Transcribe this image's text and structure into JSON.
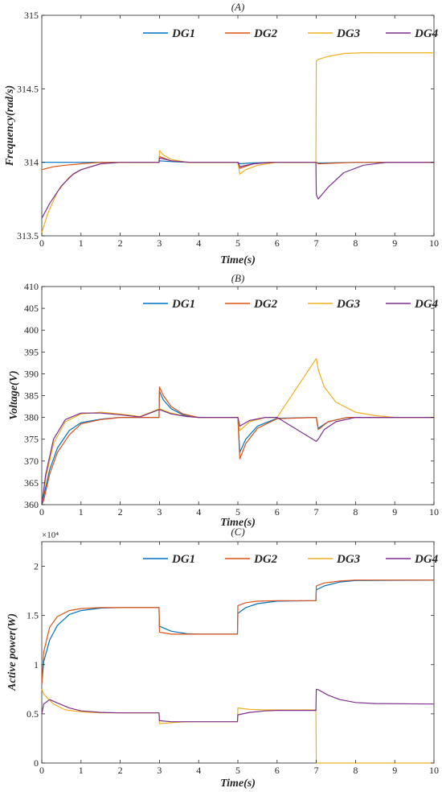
{
  "colors": {
    "DG1": "#0072BD",
    "DG2": "#D95319",
    "DG3": "#EDB120",
    "DG4": "#7E2F8E"
  },
  "chart_data": [
    {
      "type": "line",
      "title": "(A)",
      "xlabel": "Time(s)",
      "ylabel": "Frequency(rad/s)",
      "xlim": [
        0,
        10
      ],
      "ylim": [
        313.5,
        315
      ],
      "xticks": [
        "0",
        "1",
        "2",
        "3",
        "4",
        "5",
        "6",
        "7",
        "8",
        "9",
        "10"
      ],
      "yticks": [
        "313.5",
        "314",
        "314.5",
        "315"
      ],
      "legend_position": "top",
      "series": [
        {
          "name": "DG1",
          "x": [
            0,
            0.5,
            1,
            2,
            2.99,
            3,
            3.3,
            3.7,
            5,
            5.05,
            5.3,
            5.8,
            7,
            7.05,
            8,
            10
          ],
          "y": [
            314,
            314,
            314,
            314,
            314,
            314.01,
            314.005,
            314,
            314,
            313.99,
            313.995,
            314,
            314,
            313.995,
            314,
            314
          ]
        },
        {
          "name": "DG2",
          "x": [
            0,
            0.3,
            0.6,
            1,
            1.5,
            2,
            2.99,
            3,
            3.3,
            3.7,
            5,
            5.05,
            5.4,
            5.8,
            7,
            7.05,
            8,
            10
          ],
          "y": [
            313.95,
            313.97,
            313.98,
            313.99,
            314,
            314,
            314,
            314.04,
            314.01,
            314,
            314,
            313.96,
            313.99,
            314,
            314,
            313.99,
            314,
            314
          ]
        },
        {
          "name": "DG3",
          "x": [
            0,
            0.15,
            0.4,
            0.7,
            1,
            1.5,
            2,
            2.99,
            3,
            3.1,
            3.3,
            3.7,
            4.2,
            5,
            5.05,
            5.2,
            5.5,
            6,
            6.99,
            7,
            7.05,
            7.3,
            7.7,
            8.2,
            9,
            10
          ],
          "y": [
            313.52,
            313.65,
            313.8,
            313.9,
            313.95,
            313.99,
            314,
            314,
            314.08,
            314.05,
            314.02,
            314,
            314,
            314,
            313.92,
            313.95,
            313.98,
            314,
            314,
            314.69,
            314.7,
            314.72,
            314.74,
            314.745,
            314.745,
            314.745
          ]
        },
        {
          "name": "DG4",
          "x": [
            0,
            0.2,
            0.5,
            0.8,
            1,
            1.5,
            2,
            2.99,
            3,
            3.3,
            3.8,
            5,
            5.05,
            5.4,
            5.9,
            6.99,
            7,
            7.05,
            7.3,
            7.7,
            8.2,
            8.8,
            10
          ],
          "y": [
            313.62,
            313.72,
            313.84,
            313.92,
            313.95,
            313.99,
            314,
            314,
            314.03,
            314.01,
            314,
            314,
            313.97,
            313.99,
            314,
            314,
            313.78,
            313.75,
            313.83,
            313.93,
            313.98,
            314,
            314
          ]
        }
      ]
    },
    {
      "type": "line",
      "title": "(B)",
      "xlabel": "Time(s)",
      "ylabel": "Voltage(V)",
      "xlim": [
        0,
        10
      ],
      "ylim": [
        360,
        410
      ],
      "xticks": [
        "0",
        "1",
        "2",
        "3",
        "4",
        "5",
        "6",
        "7",
        "8",
        "9",
        "10"
      ],
      "yticks": [
        "360",
        "365",
        "370",
        "375",
        "380",
        "385",
        "390",
        "395",
        "400",
        "405",
        "410"
      ],
      "legend_position": "top",
      "series": [
        {
          "name": "DG1",
          "x": [
            0,
            0.05,
            0.2,
            0.4,
            0.7,
            1,
            1.5,
            2,
            2.99,
            3,
            3.1,
            3.3,
            3.6,
            4,
            5,
            5.05,
            5.2,
            5.5,
            6,
            7,
            7.05,
            7.3,
            7.8,
            10
          ],
          "y": [
            360,
            362,
            368,
            373,
            377,
            378.8,
            379.6,
            380,
            380,
            386,
            384,
            382,
            380.6,
            380,
            380,
            372,
            375,
            378,
            379.8,
            380,
            377.5,
            379,
            380,
            380
          ]
        },
        {
          "name": "DG2",
          "x": [
            0,
            0.05,
            0.2,
            0.4,
            0.7,
            1,
            1.5,
            2,
            2.99,
            3,
            3.1,
            3.3,
            3.6,
            4,
            5,
            5.05,
            5.2,
            5.5,
            6,
            7,
            7.05,
            7.3,
            7.8,
            10
          ],
          "y": [
            360,
            361,
            367,
            372,
            376,
            378.5,
            379.5,
            380,
            380,
            387,
            385,
            382.5,
            380.8,
            380,
            380,
            370.5,
            374,
            377.5,
            379.7,
            380,
            377.2,
            379,
            380,
            380
          ]
        },
        {
          "name": "DG3",
          "x": [
            0,
            0.1,
            0.3,
            0.6,
            1,
            1.5,
            2,
            2.5,
            3,
            3.3,
            3.7,
            4,
            5,
            5.05,
            5.3,
            5.7,
            6,
            7,
            7.05,
            7.2,
            7.5,
            8,
            8.5,
            9,
            10
          ],
          "y": [
            360,
            366,
            374,
            379,
            380.8,
            381.2,
            380.8,
            380.2,
            382,
            381,
            380.2,
            380,
            380,
            377,
            379,
            380,
            380,
            393.5,
            391,
            387,
            383.5,
            381.2,
            380.4,
            380,
            380
          ]
        },
        {
          "name": "DG4",
          "x": [
            0,
            0.1,
            0.3,
            0.6,
            1,
            1.5,
            2,
            2.5,
            3,
            3.3,
            3.7,
            4,
            5,
            5.05,
            5.3,
            5.7,
            6,
            7,
            7.05,
            7.2,
            7.5,
            8,
            8.5,
            10
          ],
          "y": [
            360,
            367,
            375,
            379.5,
            381,
            381,
            380.6,
            380.1,
            381.8,
            380.8,
            380.2,
            380,
            380,
            378,
            379.3,
            380,
            380,
            374.5,
            375,
            377.2,
            379,
            380,
            380,
            380
          ]
        }
      ]
    },
    {
      "type": "line",
      "title": "(C)",
      "xlabel": "Time(s)",
      "ylabel": "Active power(W)",
      "y_exponent": "×10⁴",
      "xlim": [
        0,
        10
      ],
      "ylim": [
        0,
        22500
      ],
      "xticks": [
        "0",
        "1",
        "2",
        "3",
        "4",
        "5",
        "6",
        "7",
        "8",
        "9",
        "10"
      ],
      "yticks": [
        "0",
        "0.5",
        "1",
        "1.5",
        "2"
      ],
      "ytick_values": [
        0,
        5000,
        10000,
        15000,
        20000
      ],
      "legend_position": "top",
      "series": [
        {
          "name": "DG1",
          "x": [
            0,
            0.05,
            0.2,
            0.4,
            0.7,
            1,
            1.5,
            2,
            2.99,
            3,
            3.3,
            3.7,
            4,
            4.99,
            5,
            5.2,
            5.5,
            6,
            6.99,
            7,
            7.2,
            7.6,
            8,
            10
          ],
          "y": [
            8000,
            10300,
            12500,
            14000,
            15100,
            15500,
            15750,
            15800,
            15800,
            13900,
            13400,
            13150,
            13100,
            13100,
            15200,
            15800,
            16200,
            16450,
            16500,
            17600,
            18000,
            18400,
            18550,
            18600
          ]
        },
        {
          "name": "DG2",
          "x": [
            0,
            0.05,
            0.2,
            0.4,
            0.7,
            1,
            1.5,
            2,
            2.99,
            3,
            3.3,
            3.7,
            4,
            4.99,
            5,
            5.2,
            5.5,
            6,
            6.99,
            7,
            7.2,
            7.6,
            8,
            10
          ],
          "y": [
            8000,
            11300,
            13800,
            14900,
            15500,
            15700,
            15800,
            15800,
            15800,
            13300,
            13100,
            13100,
            13100,
            13100,
            16000,
            16300,
            16450,
            16500,
            16500,
            18000,
            18300,
            18500,
            18600,
            18600
          ]
        },
        {
          "name": "DG3",
          "x": [
            0,
            0.05,
            0.3,
            0.6,
            1,
            1.5,
            2,
            2.99,
            3,
            3.3,
            3.7,
            4,
            4.99,
            5,
            5.3,
            5.7,
            6,
            6.99,
            7,
            7.01,
            10
          ],
          "y": [
            7500,
            7000,
            6000,
            5400,
            5200,
            5100,
            5100,
            5100,
            4000,
            4100,
            4200,
            4200,
            4200,
            5600,
            5450,
            5400,
            5400,
            5400,
            0,
            0,
            0
          ]
        },
        {
          "name": "DG4",
          "x": [
            0,
            0.05,
            0.2,
            0.4,
            0.7,
            1,
            1.5,
            2,
            2.99,
            3,
            3.3,
            3.7,
            4,
            4.99,
            5,
            5.3,
            5.7,
            6,
            6.99,
            7,
            7.05,
            7.3,
            7.6,
            8,
            8.5,
            10
          ],
          "y": [
            5000,
            6000,
            6450,
            6100,
            5600,
            5300,
            5150,
            5100,
            5100,
            4300,
            4200,
            4200,
            4200,
            4200,
            4900,
            5150,
            5300,
            5350,
            5350,
            7500,
            7450,
            6900,
            6450,
            6150,
            6050,
            6000
          ]
        }
      ]
    }
  ]
}
